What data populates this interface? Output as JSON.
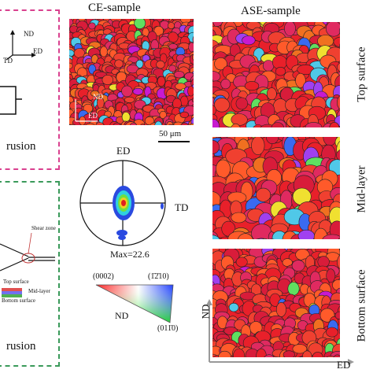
{
  "titles": {
    "ce": "CE-sample",
    "ase": "ASE-sample"
  },
  "left_top": {
    "nd": "ND",
    "ed": "ED",
    "td": "TD",
    "caption": "rusion",
    "border_color": "#d9418f"
  },
  "left_bottom": {
    "shear_zone": "Shear zone",
    "top_surface": "Top surface",
    "mid_layer": "Mid-layer",
    "bottom_surface": "Bottom surface",
    "caption": "rusion",
    "border_color": "#3a9a5a"
  },
  "ce_map": {
    "nd": "ND",
    "ed": "ED",
    "scale_bar": "50 μm"
  },
  "pole_figure": {
    "ed": "ED",
    "td": "TD",
    "max": "Max=22.6"
  },
  "ipf_key": {
    "top_left": "(0002)",
    "top_right": "(1̄2̄10)",
    "bottom": "(011̄0)",
    "nd": "ND"
  },
  "ase_rows": {
    "top": "Top surface",
    "mid": "Mid-layer",
    "bottom": "Bottom surface",
    "nd": "ND",
    "ed": "ED"
  },
  "colors": {
    "dominant_red": "#e8202a",
    "grain_palette": [
      "#e8202a",
      "#f04030",
      "#d81c3a",
      "#ff5a2a",
      "#e02a60",
      "#f07020",
      "#c81ad0",
      "#3a6af0",
      "#50c8e8",
      "#60e060",
      "#f0e030",
      "#a040f0"
    ]
  }
}
